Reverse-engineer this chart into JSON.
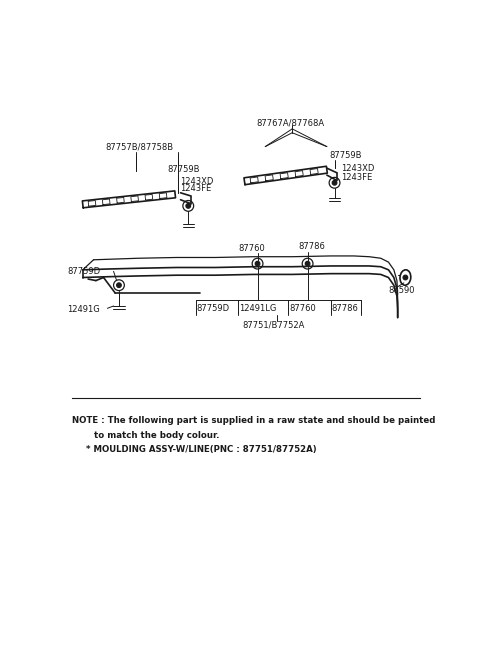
{
  "bg_color": "#ffffff",
  "fig_width": 4.8,
  "fig_height": 6.57,
  "dpi": 100,
  "note_line1": "NOTE : The following part is supplied in a raw state and should be painted",
  "note_line2": "to match the body colour.",
  "note_line3": "* MOULDING ASSY-W/LINE(PNC : 87751/87752A)"
}
